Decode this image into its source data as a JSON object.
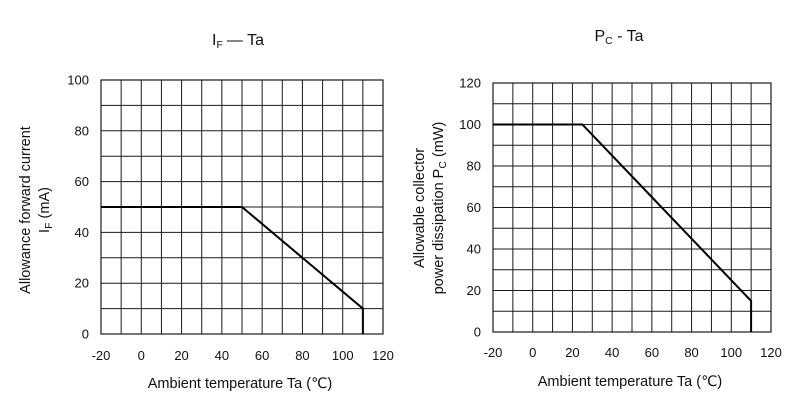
{
  "chart_data": [
    {
      "type": "line",
      "title_main": "I",
      "title_sub": "F",
      "title_rest": "— Ta",
      "xlabel": "Ambient temperature  Ta (℃)",
      "ylabel_line1": "Allowance forward current",
      "ylabel_line2_main": "I",
      "ylabel_line2_sub": "F",
      "ylabel_line2_rest": " (mA)",
      "xlim": [
        -20,
        120
      ],
      "ylim": [
        0,
        100
      ],
      "xticks": [
        "-20",
        "0",
        "20",
        "40",
        "60",
        "80",
        "100",
        "120"
      ],
      "yticks": [
        "0",
        "20",
        "40",
        "60",
        "80",
        "100"
      ],
      "grid": true,
      "series": [
        {
          "x": [
            -20,
            50,
            110,
            110
          ],
          "y": [
            50,
            50,
            10,
            0
          ]
        }
      ]
    },
    {
      "type": "line",
      "title_main": "P",
      "title_sub": "C",
      "title_rest": " - Ta",
      "xlabel": "Ambient temperature  Ta (℃)",
      "ylabel_line1": "Allowable collector",
      "ylabel_line2_main": "power dissipation  P",
      "ylabel_line2_sub": "C",
      "ylabel_line2_rest": " (mW)",
      "xlim": [
        -20,
        120
      ],
      "ylim": [
        0,
        120
      ],
      "xticks": [
        "-20",
        "0",
        "20",
        "40",
        "60",
        "80",
        "100",
        "120"
      ],
      "yticks": [
        "0",
        "20",
        "40",
        "60",
        "80",
        "100",
        "120"
      ],
      "grid": true,
      "series": [
        {
          "x": [
            -20,
            25,
            110,
            110
          ],
          "y": [
            100,
            100,
            15,
            0
          ]
        }
      ]
    }
  ]
}
